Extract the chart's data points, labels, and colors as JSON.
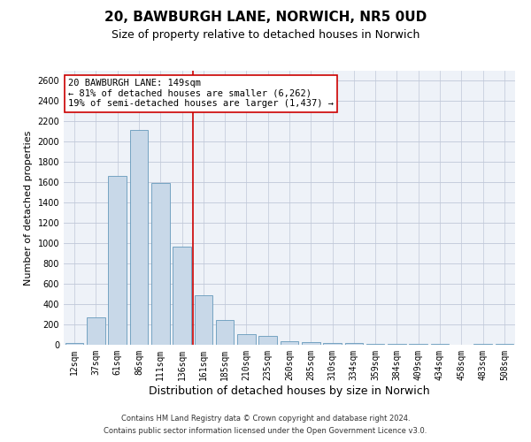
{
  "title": "20, BAWBURGH LANE, NORWICH, NR5 0UD",
  "subtitle": "Size of property relative to detached houses in Norwich",
  "xlabel": "Distribution of detached houses by size in Norwich",
  "ylabel": "Number of detached properties",
  "footer1": "Contains HM Land Registry data © Crown copyright and database right 2024.",
  "footer2": "Contains public sector information licensed under the Open Government Licence v3.0.",
  "bar_labels": [
    "12sqm",
    "37sqm",
    "61sqm",
    "86sqm",
    "111sqm",
    "136sqm",
    "161sqm",
    "185sqm",
    "210sqm",
    "235sqm",
    "260sqm",
    "285sqm",
    "310sqm",
    "334sqm",
    "359sqm",
    "384sqm",
    "409sqm",
    "434sqm",
    "458sqm",
    "483sqm",
    "508sqm"
  ],
  "bar_values": [
    20,
    270,
    1660,
    2120,
    1590,
    970,
    490,
    240,
    105,
    85,
    35,
    30,
    20,
    15,
    10,
    10,
    5,
    5,
    2,
    10,
    5
  ],
  "bar_color": "#c8d8e8",
  "bar_edge_color": "#6699bb",
  "vline_x": 5.5,
  "vline_color": "#cc0000",
  "annotation_text": "20 BAWBURGH LANE: 149sqm\n← 81% of detached houses are smaller (6,262)\n19% of semi-detached houses are larger (1,437) →",
  "annotation_box_color": "#ffffff",
  "annotation_box_edge_color": "#cc0000",
  "ylim": [
    0,
    2700
  ],
  "yticks": [
    0,
    200,
    400,
    600,
    800,
    1000,
    1200,
    1400,
    1600,
    1800,
    2000,
    2200,
    2400,
    2600
  ],
  "grid_color": "#c0c8d8",
  "background_color": "#eef2f8",
  "title_fontsize": 11,
  "subtitle_fontsize": 9,
  "xlabel_fontsize": 9,
  "ylabel_fontsize": 8,
  "tick_fontsize": 7,
  "annotation_fontsize": 7.5,
  "footer_fontsize": 6
}
